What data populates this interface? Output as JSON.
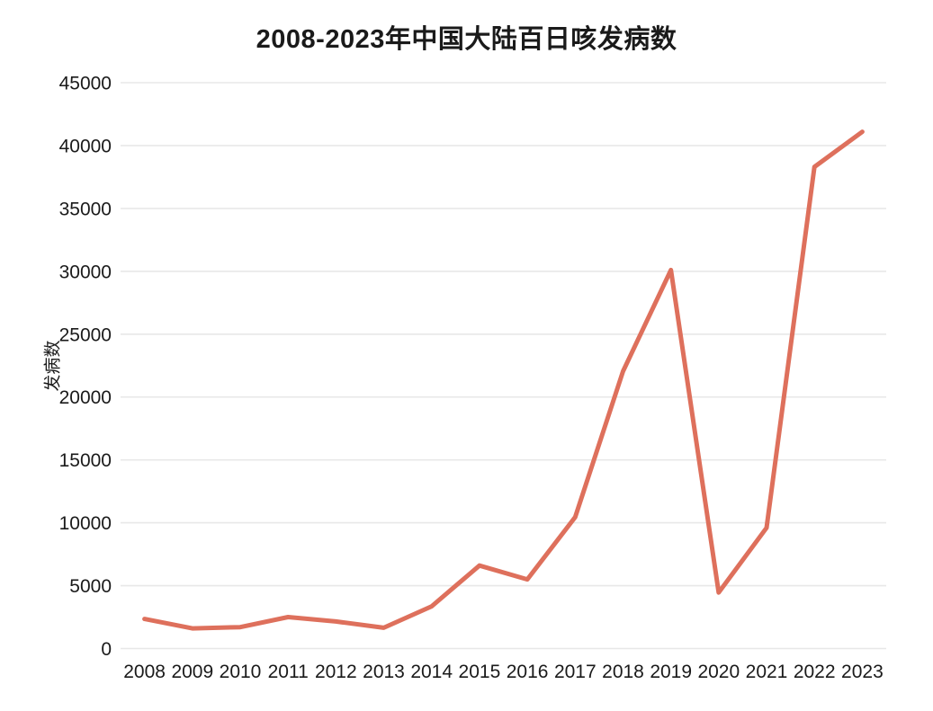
{
  "chart_data": {
    "type": "line",
    "title": "2008-2023年中国大陆百日咳发病数",
    "ylabel": "发病数",
    "xlabel": "",
    "categories": [
      "2008",
      "2009",
      "2010",
      "2011",
      "2012",
      "2013",
      "2014",
      "2015",
      "2016",
      "2017",
      "2018",
      "2019",
      "2020",
      "2021",
      "2022",
      "2023"
    ],
    "values": [
      2350,
      1600,
      1700,
      2500,
      2150,
      1650,
      3350,
      6600,
      5500,
      10450,
      22050,
      30100,
      4450,
      9600,
      38300,
      41100
    ],
    "ylim": [
      0,
      45000
    ],
    "ytick_step": 5000,
    "ytick_labels": [
      "0",
      "5000",
      "10000",
      "15000",
      "20000",
      "25000",
      "30000",
      "35000",
      "40000",
      "45000"
    ],
    "grid": "horizontal",
    "legend": "none",
    "colors": {
      "line": "#DE705C",
      "grid": "#E8E8E8",
      "text": "#1A1A1A",
      "background": "#FFFFFF"
    }
  }
}
